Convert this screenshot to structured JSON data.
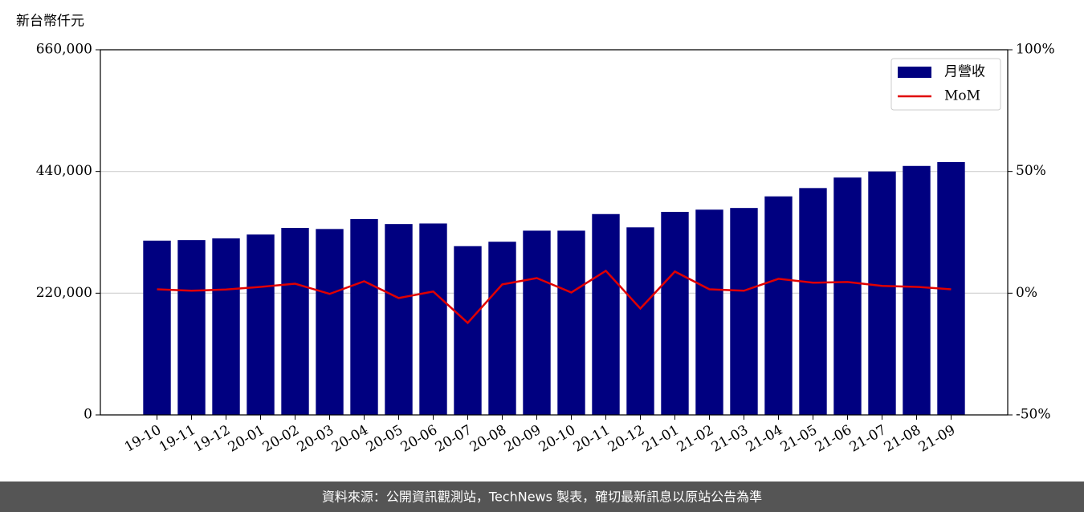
{
  "chart_data": {
    "type": "bar",
    "y_unit_label": "新台幣仟元",
    "categories": [
      "19-10",
      "19-11",
      "19-12",
      "20-01",
      "20-02",
      "20-03",
      "20-04",
      "20-05",
      "20-06",
      "20-07",
      "20-08",
      "20-09",
      "20-10",
      "20-11",
      "20-12",
      "21-01",
      "21-02",
      "21-03",
      "21-04",
      "21-05",
      "21-06",
      "21-07",
      "21-08",
      "21-09"
    ],
    "series": [
      {
        "name": "月營收",
        "type": "bar",
        "color": "#000080",
        "values": [
          315000,
          316000,
          319000,
          326000,
          338000,
          336000,
          354000,
          345000,
          346000,
          305000,
          313000,
          333000,
          333000,
          363000,
          339000,
          367000,
          371000,
          374000,
          395000,
          410000,
          429000,
          440000,
          450000,
          457000
        ]
      },
      {
        "name": "MoM",
        "type": "line",
        "color": "#e00000",
        "axis": "y2",
        "values": [
          1.6,
          1.0,
          1.5,
          2.6,
          3.9,
          -0.3,
          4.9,
          -2.0,
          0.7,
          -12.2,
          3.6,
          6.2,
          0.3,
          9.2,
          -6.3,
          8.9,
          1.6,
          1.0,
          5.9,
          4.3,
          4.6,
          3.0,
          2.6,
          1.6
        ]
      }
    ],
    "ylim": [
      0,
      660000
    ],
    "yticks": [
      {
        "value": 0,
        "label": "0"
      },
      {
        "value": 220000,
        "label": "220,000"
      },
      {
        "value": 440000,
        "label": "440,000"
      },
      {
        "value": 660000,
        "label": "660,000"
      }
    ],
    "y2lim": [
      -50,
      100
    ],
    "y2ticks": [
      {
        "value": -50,
        "label": "-50%"
      },
      {
        "value": 0,
        "label": "0%"
      },
      {
        "value": 50,
        "label": "50%"
      },
      {
        "value": 100,
        "label": "100%"
      }
    ],
    "grid": true,
    "legend": "upper right"
  },
  "footer": "資料來源：公開資訊觀測站，TechNews 製表，確切最新訊息以原站公告為準"
}
